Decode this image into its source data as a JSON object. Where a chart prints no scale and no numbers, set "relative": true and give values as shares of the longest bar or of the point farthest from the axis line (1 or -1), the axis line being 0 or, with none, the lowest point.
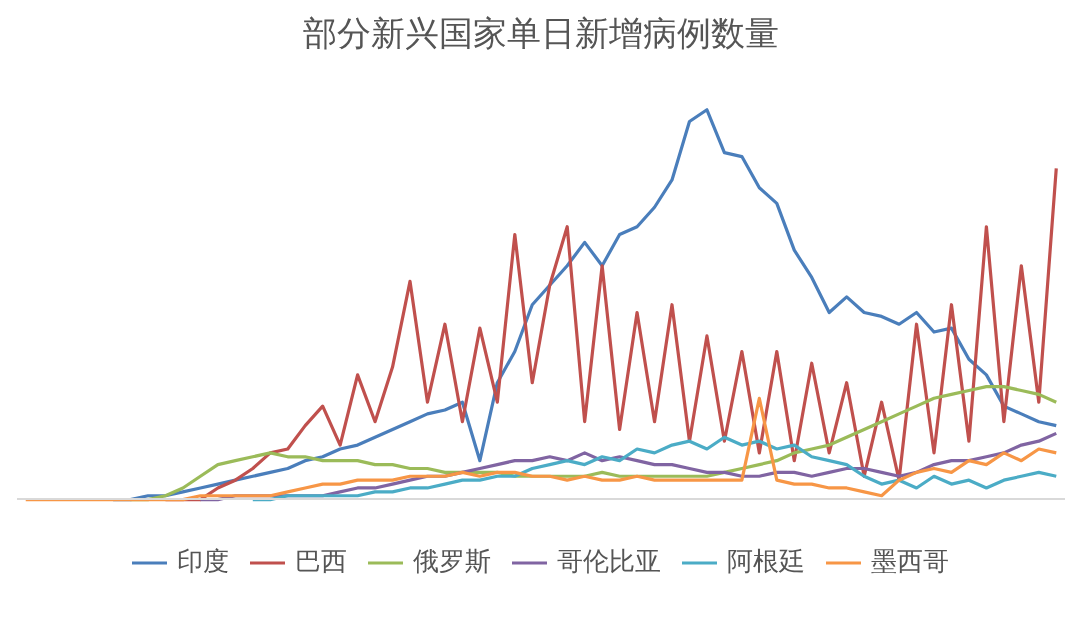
{
  "chart_data": {
    "type": "line",
    "title": "部分新兴国家单日新增病例数量",
    "relative": true,
    "legend": "bottom",
    "marker": "none",
    "line_style": "solid",
    "categories": [
      null,
      null,
      null,
      null,
      null,
      null,
      null,
      null,
      null,
      null,
      null,
      null,
      null,
      null,
      null,
      null,
      null,
      null,
      null,
      null,
      null,
      null,
      null,
      null,
      null,
      null,
      null,
      null,
      null,
      null,
      null,
      null,
      null,
      null,
      null,
      null,
      null,
      null,
      null,
      null,
      null,
      null,
      null,
      null,
      null,
      null,
      null,
      null,
      null,
      null,
      null,
      null,
      null,
      null,
      null,
      null,
      null,
      null,
      null,
      null
    ],
    "series": [
      {
        "name": "印度",
        "color": "#4a7ebb",
        "values": [
          null,
          null,
          null,
          null,
          null,
          0,
          0,
          0.01,
          0.01,
          0.02,
          0.03,
          0.04,
          0.05,
          0.06,
          0.07,
          0.08,
          0.1,
          0.11,
          0.13,
          0.14,
          0.16,
          0.18,
          0.2,
          0.22,
          0.23,
          0.25,
          0.1,
          0.3,
          0.38,
          0.5,
          0.55,
          0.6,
          0.66,
          0.6,
          0.68,
          0.7,
          0.75,
          0.82,
          0.97,
          1.0,
          0.89,
          0.88,
          0.8,
          0.76,
          0.64,
          0.57,
          0.48,
          0.52,
          0.48,
          0.47,
          0.45,
          0.48,
          0.43,
          0.44,
          0.36,
          0.32,
          0.24,
          0.22,
          0.2,
          0.19
        ]
      },
      {
        "name": "巴西",
        "color": "#c0504d",
        "values": [
          null,
          null,
          null,
          null,
          null,
          null,
          null,
          null,
          0,
          0,
          0,
          0.03,
          0.05,
          0.08,
          0.12,
          0.13,
          0.19,
          0.24,
          0.14,
          0.32,
          0.2,
          0.34,
          0.56,
          0.25,
          0.45,
          0.2,
          0.44,
          0.25,
          0.68,
          0.3,
          0.55,
          0.7,
          0.2,
          0.6,
          0.18,
          0.48,
          0.2,
          0.5,
          0.15,
          0.42,
          0.15,
          0.38,
          0.12,
          0.38,
          0.1,
          0.35,
          0.12,
          0.3,
          0.06,
          0.25,
          0.05,
          0.45,
          0.12,
          0.5,
          0.15,
          0.7,
          0.2,
          0.6,
          0.25,
          0.85
        ]
      },
      {
        "name": "俄罗斯",
        "color": "#9bbb59",
        "values": [
          null,
          null,
          null,
          null,
          null,
          null,
          0,
          0,
          0.01,
          0.03,
          0.06,
          0.09,
          0.1,
          0.11,
          0.12,
          0.11,
          0.11,
          0.1,
          0.1,
          0.1,
          0.09,
          0.09,
          0.08,
          0.08,
          0.07,
          0.07,
          0.07,
          0.07,
          0.06,
          0.06,
          0.06,
          0.06,
          0.06,
          0.07,
          0.06,
          0.06,
          0.06,
          0.06,
          0.06,
          0.06,
          0.07,
          0.08,
          0.09,
          0.1,
          0.12,
          0.13,
          0.14,
          0.16,
          0.18,
          0.2,
          0.22,
          0.24,
          0.26,
          0.27,
          0.28,
          0.29,
          0.29,
          0.28,
          0.27,
          0.25
        ]
      },
      {
        "name": "哥伦比亚",
        "color": "#8064a2",
        "values": [
          null,
          null,
          null,
          null,
          null,
          null,
          null,
          null,
          null,
          null,
          0,
          0,
          0.01,
          0.01,
          0.01,
          0.01,
          0.01,
          0.01,
          0.02,
          0.03,
          0.03,
          0.04,
          0.05,
          0.06,
          0.06,
          0.07,
          0.08,
          0.09,
          0.1,
          0.1,
          0.11,
          0.1,
          0.12,
          0.1,
          0.11,
          0.1,
          0.09,
          0.09,
          0.08,
          0.07,
          0.07,
          0.06,
          0.06,
          0.07,
          0.07,
          0.06,
          0.07,
          0.08,
          0.08,
          0.07,
          0.06,
          0.07,
          0.09,
          0.1,
          0.1,
          0.11,
          0.12,
          0.14,
          0.15,
          0.17
        ]
      },
      {
        "name": "阿根廷",
        "color": "#4bacc6",
        "values": [
          null,
          null,
          null,
          null,
          null,
          null,
          null,
          null,
          null,
          null,
          null,
          null,
          null,
          0,
          0,
          0.01,
          0.01,
          0.01,
          0.01,
          0.01,
          0.02,
          0.02,
          0.03,
          0.03,
          0.04,
          0.05,
          0.05,
          0.06,
          0.06,
          0.08,
          0.09,
          0.1,
          0.09,
          0.11,
          0.1,
          0.13,
          0.12,
          0.14,
          0.15,
          0.13,
          0.16,
          0.14,
          0.15,
          0.13,
          0.14,
          0.11,
          0.1,
          0.09,
          0.06,
          0.04,
          0.05,
          0.03,
          0.06,
          0.04,
          0.05,
          0.03,
          0.05,
          0.06,
          0.07,
          0.06
        ]
      },
      {
        "name": "墨西哥",
        "color": "#f79646",
        "values": [
          0,
          0,
          0,
          0,
          0,
          0,
          0,
          0,
          0,
          0,
          0.01,
          0.01,
          0.01,
          0.01,
          0.01,
          0.02,
          0.03,
          0.04,
          0.04,
          0.05,
          0.05,
          0.05,
          0.06,
          0.06,
          0.06,
          0.07,
          0.06,
          0.07,
          0.07,
          0.06,
          0.06,
          0.05,
          0.06,
          0.05,
          0.05,
          0.06,
          0.05,
          0.05,
          0.05,
          0.05,
          0.05,
          0.05,
          0.26,
          0.05,
          0.04,
          0.04,
          0.03,
          0.03,
          0.02,
          0.01,
          0.05,
          0.07,
          0.08,
          0.07,
          0.1,
          0.09,
          0.12,
          0.1,
          0.13,
          0.12
        ]
      }
    ]
  }
}
